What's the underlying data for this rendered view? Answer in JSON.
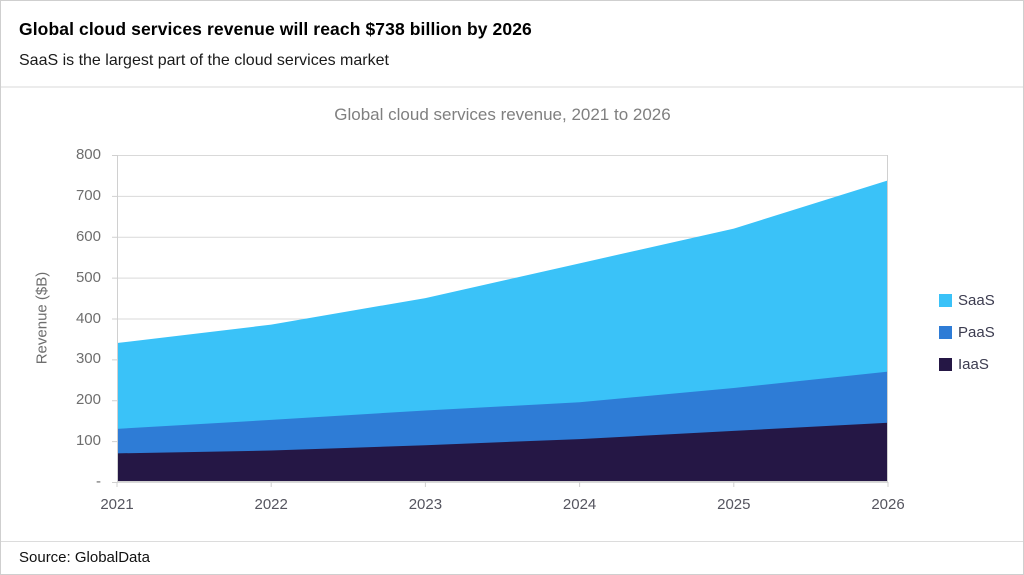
{
  "page": {
    "title": "Global cloud services revenue will reach $738 billion by 2026",
    "subtitle": "SaaS is the largest part of the cloud services market",
    "source": "Source: GlobalData"
  },
  "chart_data": {
    "type": "area",
    "stacked": true,
    "title": "Global cloud services revenue, 2021 to 2026",
    "xlabel": "",
    "ylabel": "Revenue ($B)",
    "x": [
      2021,
      2022,
      2023,
      2024,
      2025,
      2026
    ],
    "series": [
      {
        "name": "IaaS",
        "color": "#251745",
        "values": [
          70,
          77,
          90,
          105,
          125,
          145
        ]
      },
      {
        "name": "PaaS",
        "color": "#2E7CD6",
        "values": [
          60,
          75,
          85,
          90,
          105,
          125
        ]
      },
      {
        "name": "SaaS",
        "color": "#3AC2F8",
        "values": [
          210,
          233,
          275,
          340,
          390,
          468
        ]
      }
    ],
    "totals": [
      340,
      385,
      450,
      535,
      620,
      738
    ],
    "ylim": [
      0,
      800
    ],
    "ytick_values": [
      800,
      700,
      600,
      500,
      400,
      300,
      200,
      100,
      0
    ],
    "ytick_labels": [
      "800",
      "700",
      "600",
      "500",
      "400",
      "300",
      "200",
      "100",
      "-"
    ],
    "xtick_labels": [
      "2021",
      "2022",
      "2023",
      "2024",
      "2025",
      "2026"
    ],
    "grid": true,
    "legend": [
      "SaaS",
      "PaaS",
      "IaaS"
    ],
    "legend_position": "right",
    "colors": {
      "grid": "#d9d9d9",
      "axis": "#d0d0d0",
      "chart_title_text": "#7f7f7f",
      "tick_text": "#6e6e6e"
    }
  }
}
